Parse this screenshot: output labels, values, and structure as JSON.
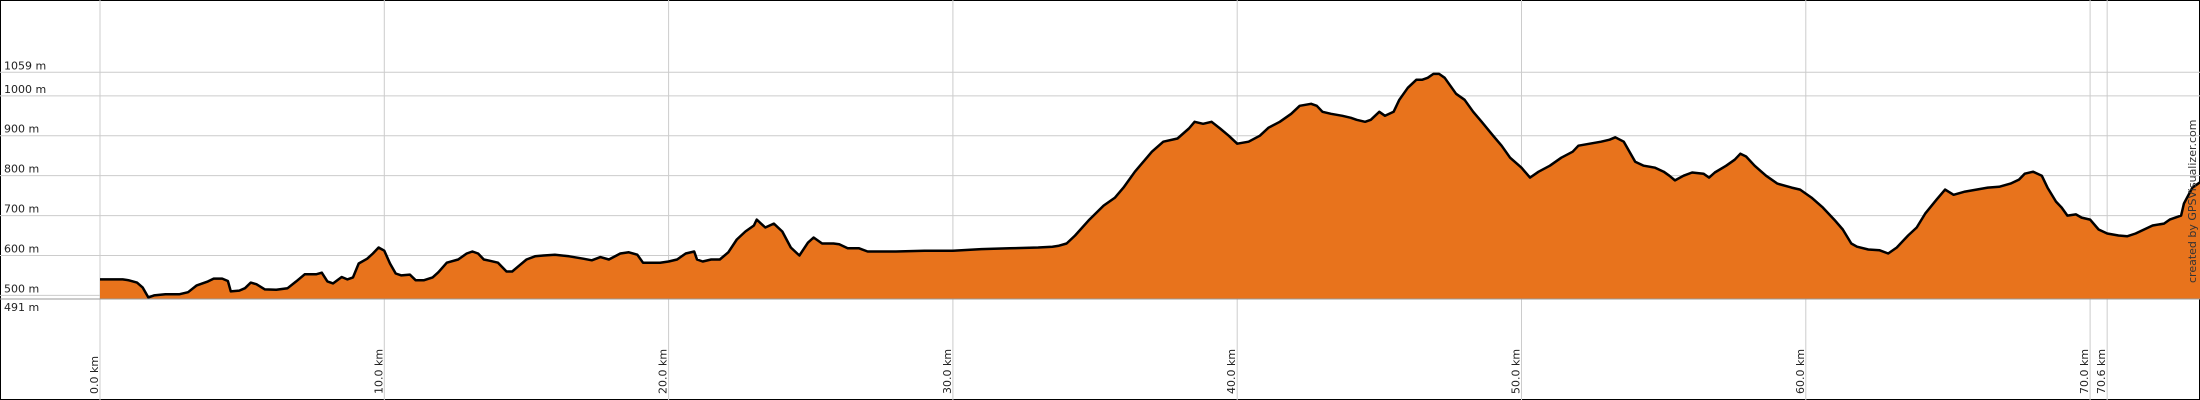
{
  "chart_data": {
    "type": "area",
    "title": "",
    "xlabel": "",
    "ylabel": "",
    "x_unit": "km",
    "y_unit": "m",
    "xlim": [
      0,
      75.2
    ],
    "ylim": [
      491,
      1230
    ],
    "grid": true,
    "colors": {
      "fill": "#e8731c",
      "line": "#000000",
      "grid": "#cccccc",
      "border": "#000000"
    },
    "y_ticks": [
      {
        "value": 491,
        "label": "491 m"
      },
      {
        "value": 500,
        "label": "500 m"
      },
      {
        "value": 600,
        "label": "600 m"
      },
      {
        "value": 700,
        "label": "700 m"
      },
      {
        "value": 800,
        "label": "800 m"
      },
      {
        "value": 900,
        "label": "900 m"
      },
      {
        "value": 1000,
        "label": "1000 m"
      },
      {
        "value": 1059,
        "label": "1059 m"
      }
    ],
    "x_ticks": [
      {
        "value": 0,
        "label": "0.0 km"
      },
      {
        "value": 10,
        "label": "10.0 km"
      },
      {
        "value": 20,
        "label": "20.0 km"
      },
      {
        "value": 30,
        "label": "30.0 km"
      },
      {
        "value": 40,
        "label": "40.0 km"
      },
      {
        "value": 50,
        "label": "50.0 km"
      },
      {
        "value": 60,
        "label": "60.0 km"
      },
      {
        "value": 70,
        "label": "70.0 km"
      },
      {
        "value": 70.6,
        "label": "70.6 km"
      }
    ],
    "series": [
      {
        "points": [
          [
            0.0,
            540
          ],
          [
            0.8,
            540
          ],
          [
            1.0,
            538
          ],
          [
            1.3,
            532
          ],
          [
            1.5,
            520
          ],
          [
            1.7,
            495
          ],
          [
            1.9,
            500
          ],
          [
            2.3,
            503
          ],
          [
            2.8,
            503
          ],
          [
            3.1,
            508
          ],
          [
            3.4,
            525
          ],
          [
            3.8,
            535
          ],
          [
            4.0,
            542
          ],
          [
            4.3,
            542
          ],
          [
            4.5,
            536
          ],
          [
            4.6,
            510
          ],
          [
            4.9,
            512
          ],
          [
            5.1,
            518
          ],
          [
            5.3,
            532
          ],
          [
            5.5,
            528
          ],
          [
            5.8,
            515
          ],
          [
            6.2,
            514
          ],
          [
            6.6,
            518
          ],
          [
            6.9,
            535
          ],
          [
            7.2,
            553
          ],
          [
            7.6,
            553
          ],
          [
            7.8,
            557
          ],
          [
            8.0,
            535
          ],
          [
            8.2,
            530
          ],
          [
            8.5,
            546
          ],
          [
            8.7,
            540
          ],
          [
            8.9,
            545
          ],
          [
            9.1,
            580
          ],
          [
            9.4,
            592
          ],
          [
            9.6,
            605
          ],
          [
            9.8,
            620
          ],
          [
            10.0,
            612
          ],
          [
            10.2,
            580
          ],
          [
            10.4,
            555
          ],
          [
            10.6,
            550
          ],
          [
            10.9,
            552
          ],
          [
            11.1,
            538
          ],
          [
            11.4,
            538
          ],
          [
            11.7,
            545
          ],
          [
            11.9,
            558
          ],
          [
            12.2,
            582
          ],
          [
            12.6,
            590
          ],
          [
            12.9,
            605
          ],
          [
            13.1,
            610
          ],
          [
            13.3,
            605
          ],
          [
            13.5,
            590
          ],
          [
            13.7,
            587
          ],
          [
            14.0,
            582
          ],
          [
            14.3,
            560
          ],
          [
            14.5,
            560
          ],
          [
            14.7,
            572
          ],
          [
            15.0,
            590
          ],
          [
            15.3,
            598
          ],
          [
            15.6,
            600
          ],
          [
            16.0,
            602
          ],
          [
            16.5,
            598
          ],
          [
            17.0,
            592
          ],
          [
            17.3,
            588
          ],
          [
            17.6,
            596
          ],
          [
            17.9,
            590
          ],
          [
            18.3,
            605
          ],
          [
            18.6,
            608
          ],
          [
            18.9,
            602
          ],
          [
            19.1,
            582
          ],
          [
            19.4,
            582
          ],
          [
            19.7,
            582
          ],
          [
            20.0,
            585
          ],
          [
            20.3,
            590
          ],
          [
            20.6,
            605
          ],
          [
            20.9,
            610
          ],
          [
            21.0,
            590
          ],
          [
            21.2,
            585
          ],
          [
            21.5,
            590
          ],
          [
            21.8,
            590
          ],
          [
            22.1,
            608
          ],
          [
            22.4,
            640
          ],
          [
            22.7,
            660
          ],
          [
            23.0,
            675
          ],
          [
            23.1,
            690
          ],
          [
            23.4,
            670
          ],
          [
            23.7,
            680
          ],
          [
            24.0,
            660
          ],
          [
            24.3,
            620
          ],
          [
            24.6,
            600
          ],
          [
            24.9,
            632
          ],
          [
            25.1,
            645
          ],
          [
            25.4,
            630
          ],
          [
            25.8,
            630
          ],
          [
            26.0,
            628
          ],
          [
            26.3,
            618
          ],
          [
            26.7,
            618
          ],
          [
            27.0,
            610
          ],
          [
            28.0,
            610
          ],
          [
            29.0,
            612
          ],
          [
            30.0,
            612
          ],
          [
            31.0,
            616
          ],
          [
            32.0,
            618
          ],
          [
            33.0,
            620
          ],
          [
            33.5,
            622
          ],
          [
            33.7,
            624
          ],
          [
            34.0,
            630
          ],
          [
            34.3,
            650
          ],
          [
            34.8,
            690
          ],
          [
            35.3,
            725
          ],
          [
            35.7,
            745
          ],
          [
            36.0,
            770
          ],
          [
            36.4,
            810
          ],
          [
            36.7,
            835
          ],
          [
            37.0,
            860
          ],
          [
            37.4,
            885
          ],
          [
            37.9,
            893
          ],
          [
            38.3,
            918
          ],
          [
            38.5,
            935
          ],
          [
            38.8,
            930
          ],
          [
            39.1,
            935
          ],
          [
            39.4,
            918
          ],
          [
            39.7,
            900
          ],
          [
            40.0,
            880
          ],
          [
            40.4,
            885
          ],
          [
            40.8,
            900
          ],
          [
            41.1,
            920
          ],
          [
            41.5,
            935
          ],
          [
            41.9,
            955
          ],
          [
            42.2,
            975
          ],
          [
            42.6,
            980
          ],
          [
            42.8,
            975
          ],
          [
            43.0,
            960
          ],
          [
            43.3,
            955
          ],
          [
            43.7,
            950
          ],
          [
            44.0,
            945
          ],
          [
            44.2,
            940
          ],
          [
            44.5,
            935
          ],
          [
            44.7,
            940
          ],
          [
            45.0,
            960
          ],
          [
            45.2,
            950
          ],
          [
            45.5,
            960
          ],
          [
            45.7,
            990
          ],
          [
            46.0,
            1020
          ],
          [
            46.3,
            1040
          ],
          [
            46.5,
            1040
          ],
          [
            46.7,
            1045
          ],
          [
            46.9,
            1055
          ],
          [
            47.1,
            1055
          ],
          [
            47.3,
            1045
          ],
          [
            47.5,
            1025
          ],
          [
            47.7,
            1005
          ],
          [
            48.0,
            990
          ],
          [
            48.3,
            960
          ],
          [
            48.6,
            935
          ],
          [
            49.0,
            900
          ],
          [
            49.3,
            875
          ],
          [
            49.6,
            845
          ],
          [
            50.0,
            820
          ],
          [
            50.3,
            795
          ],
          [
            50.6,
            810
          ],
          [
            51.0,
            825
          ],
          [
            51.4,
            845
          ],
          [
            51.8,
            860
          ],
          [
            52.0,
            875
          ],
          [
            52.4,
            880
          ],
          [
            52.8,
            885
          ],
          [
            53.1,
            890
          ],
          [
            53.3,
            896
          ],
          [
            53.6,
            885
          ],
          [
            53.8,
            860
          ],
          [
            54.0,
            835
          ],
          [
            54.3,
            825
          ],
          [
            54.7,
            820
          ],
          [
            55.0,
            810
          ],
          [
            55.2,
            800
          ],
          [
            55.4,
            788
          ],
          [
            55.7,
            800
          ],
          [
            56.0,
            808
          ],
          [
            56.4,
            805
          ],
          [
            56.6,
            795
          ],
          [
            56.8,
            808
          ],
          [
            57.2,
            825
          ],
          [
            57.5,
            840
          ],
          [
            57.7,
            855
          ],
          [
            57.9,
            848
          ],
          [
            58.2,
            825
          ],
          [
            58.6,
            800
          ],
          [
            59.0,
            780
          ],
          [
            59.5,
            770
          ],
          [
            59.8,
            765
          ],
          [
            60.2,
            745
          ],
          [
            60.6,
            720
          ],
          [
            61.0,
            690
          ],
          [
            61.3,
            665
          ],
          [
            61.6,
            630
          ],
          [
            61.8,
            622
          ],
          [
            62.2,
            615
          ],
          [
            62.6,
            613
          ],
          [
            62.9,
            605
          ],
          [
            63.2,
            620
          ],
          [
            63.6,
            650
          ],
          [
            63.9,
            670
          ],
          [
            64.2,
            705
          ],
          [
            64.6,
            740
          ],
          [
            64.9,
            765
          ],
          [
            65.2,
            752
          ],
          [
            65.6,
            760
          ],
          [
            66.0,
            765
          ],
          [
            66.4,
            770
          ],
          [
            66.8,
            772
          ],
          [
            67.2,
            780
          ],
          [
            67.5,
            790
          ],
          [
            67.7,
            805
          ],
          [
            68.0,
            810
          ],
          [
            68.3,
            800
          ],
          [
            68.5,
            770
          ],
          [
            68.8,
            735
          ],
          [
            69.0,
            720
          ],
          [
            69.2,
            700
          ],
          [
            69.5,
            703
          ],
          [
            69.7,
            695
          ],
          [
            70.0,
            690
          ],
          [
            70.3,
            665
          ],
          [
            70.6,
            655
          ],
          [
            71.0,
            650
          ],
          [
            71.3,
            648
          ],
          [
            71.6,
            655
          ],
          [
            71.9,
            665
          ],
          [
            72.2,
            675
          ],
          [
            72.6,
            680
          ],
          [
            72.8,
            690
          ],
          [
            73.2,
            700
          ],
          [
            73.3,
            730
          ],
          [
            73.6,
            770
          ],
          [
            73.9,
            785
          ],
          [
            74.2,
            790
          ],
          [
            74.5,
            793
          ],
          [
            74.8,
            785
          ],
          [
            75.2,
            770
          ]
        ]
      }
    ]
  },
  "credit": "created by GPSVisualizer.com"
}
